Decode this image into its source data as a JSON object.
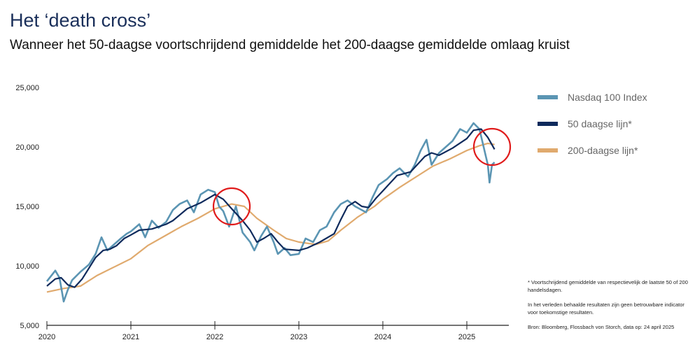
{
  "header": {
    "title": "Het ‘death cross’",
    "subtitle": "Wanneer het 50-daagse voortschrijdend gemiddelde het 200-daagse gemiddelde omlaag kruist"
  },
  "notes": [
    "* Voortschrijdend gemiddelde van respectievelijk de laatste 50 of 200 handelsdagen.",
    "In het verleden behaalde resultaten zijn geen betrouwbare indicator voor toekomstige resultaten.",
    "Bron: Bloomberg, Flossbach von Storch, data op: 24 april 2025"
  ],
  "chart_data": {
    "type": "line",
    "title": "",
    "xlabel": "",
    "ylabel": "",
    "ylim": [
      5000,
      25000
    ],
    "xlim": [
      2020,
      2025.5
    ],
    "yticks": [
      "5,000",
      "10,000",
      "15,000",
      "20,000",
      "25,000"
    ],
    "xticks": [
      "2020",
      "2021",
      "2022",
      "2023",
      "2024",
      "2025"
    ],
    "grid": false,
    "legend": "right",
    "annotations": [
      {
        "type": "circle",
        "x": 2022.2,
        "y": 15000,
        "color": "#e01b1b"
      },
      {
        "type": "circle",
        "x": 2025.3,
        "y": 20000,
        "color": "#e01b1b"
      }
    ],
    "series": [
      {
        "name": "Nasdaq 100 Index",
        "color": "#5b95b3",
        "points": [
          [
            2020.0,
            8700
          ],
          [
            2020.1,
            9600
          ],
          [
            2020.15,
            9000
          ],
          [
            2020.2,
            7000
          ],
          [
            2020.25,
            8000
          ],
          [
            2020.3,
            8800
          ],
          [
            2020.4,
            9500
          ],
          [
            2020.5,
            10100
          ],
          [
            2020.58,
            11000
          ],
          [
            2020.65,
            12400
          ],
          [
            2020.72,
            11300
          ],
          [
            2020.8,
            11800
          ],
          [
            2020.88,
            12300
          ],
          [
            2020.95,
            12700
          ],
          [
            2021.0,
            12900
          ],
          [
            2021.1,
            13500
          ],
          [
            2021.17,
            12400
          ],
          [
            2021.25,
            13800
          ],
          [
            2021.33,
            13200
          ],
          [
            2021.42,
            13700
          ],
          [
            2021.5,
            14700
          ],
          [
            2021.58,
            15200
          ],
          [
            2021.67,
            15500
          ],
          [
            2021.75,
            14500
          ],
          [
            2021.83,
            16000
          ],
          [
            2021.92,
            16400
          ],
          [
            2022.0,
            16200
          ],
          [
            2022.05,
            15000
          ],
          [
            2022.1,
            14600
          ],
          [
            2022.17,
            13300
          ],
          [
            2022.25,
            15000
          ],
          [
            2022.33,
            12800
          ],
          [
            2022.42,
            12000
          ],
          [
            2022.47,
            11300
          ],
          [
            2022.55,
            12500
          ],
          [
            2022.62,
            13300
          ],
          [
            2022.7,
            12000
          ],
          [
            2022.75,
            11000
          ],
          [
            2022.83,
            11500
          ],
          [
            2022.9,
            10900
          ],
          [
            2023.0,
            11000
          ],
          [
            2023.08,
            12300
          ],
          [
            2023.17,
            12000
          ],
          [
            2023.25,
            13000
          ],
          [
            2023.33,
            13300
          ],
          [
            2023.42,
            14500
          ],
          [
            2023.5,
            15200
          ],
          [
            2023.58,
            15500
          ],
          [
            2023.67,
            15000
          ],
          [
            2023.8,
            14500
          ],
          [
            2023.88,
            15800
          ],
          [
            2023.95,
            16800
          ],
          [
            2024.05,
            17300
          ],
          [
            2024.12,
            17800
          ],
          [
            2024.2,
            18200
          ],
          [
            2024.3,
            17500
          ],
          [
            2024.38,
            18500
          ],
          [
            2024.45,
            19700
          ],
          [
            2024.52,
            20600
          ],
          [
            2024.58,
            18500
          ],
          [
            2024.67,
            19500
          ],
          [
            2024.75,
            20000
          ],
          [
            2024.83,
            20500
          ],
          [
            2024.92,
            21500
          ],
          [
            2025.0,
            21200
          ],
          [
            2025.08,
            22000
          ],
          [
            2025.15,
            21500
          ],
          [
            2025.2,
            20000
          ],
          [
            2025.25,
            18500
          ],
          [
            2025.27,
            17000
          ],
          [
            2025.3,
            18500
          ],
          [
            2025.33,
            18700
          ]
        ]
      },
      {
        "name": "50 daagse lijn*",
        "color": "#0e2a5c",
        "points": [
          [
            2020.0,
            8300
          ],
          [
            2020.1,
            8900
          ],
          [
            2020.17,
            9000
          ],
          [
            2020.25,
            8400
          ],
          [
            2020.33,
            8200
          ],
          [
            2020.42,
            8900
          ],
          [
            2020.5,
            9800
          ],
          [
            2020.58,
            10700
          ],
          [
            2020.67,
            11300
          ],
          [
            2020.75,
            11400
          ],
          [
            2020.83,
            11700
          ],
          [
            2020.92,
            12300
          ],
          [
            2021.0,
            12600
          ],
          [
            2021.1,
            13000
          ],
          [
            2021.25,
            13100
          ],
          [
            2021.42,
            13500
          ],
          [
            2021.5,
            13800
          ],
          [
            2021.67,
            14800
          ],
          [
            2021.83,
            15300
          ],
          [
            2022.0,
            16000
          ],
          [
            2022.1,
            15600
          ],
          [
            2022.2,
            14800
          ],
          [
            2022.33,
            13800
          ],
          [
            2022.42,
            13000
          ],
          [
            2022.5,
            12000
          ],
          [
            2022.58,
            12300
          ],
          [
            2022.67,
            12700
          ],
          [
            2022.75,
            12000
          ],
          [
            2022.83,
            11400
          ],
          [
            2023.0,
            11300
          ],
          [
            2023.1,
            11500
          ],
          [
            2023.25,
            12000
          ],
          [
            2023.42,
            12700
          ],
          [
            2023.5,
            13900
          ],
          [
            2023.58,
            15000
          ],
          [
            2023.67,
            15400
          ],
          [
            2023.75,
            15000
          ],
          [
            2023.83,
            14900
          ],
          [
            2023.92,
            15700
          ],
          [
            2024.0,
            16300
          ],
          [
            2024.17,
            17600
          ],
          [
            2024.33,
            17900
          ],
          [
            2024.5,
            19200
          ],
          [
            2024.58,
            19500
          ],
          [
            2024.67,
            19300
          ],
          [
            2024.83,
            19900
          ],
          [
            2025.0,
            20700
          ],
          [
            2025.08,
            21400
          ],
          [
            2025.17,
            21500
          ],
          [
            2025.25,
            20800
          ],
          [
            2025.33,
            19800
          ]
        ]
      },
      {
        "name": "200-daagse lijn*",
        "color": "#e0aa6e",
        "points": [
          [
            2020.0,
            7800
          ],
          [
            2020.2,
            8100
          ],
          [
            2020.4,
            8300
          ],
          [
            2020.6,
            9200
          ],
          [
            2020.8,
            9900
          ],
          [
            2021.0,
            10600
          ],
          [
            2021.2,
            11700
          ],
          [
            2021.4,
            12500
          ],
          [
            2021.6,
            13300
          ],
          [
            2021.8,
            14000
          ],
          [
            2022.0,
            14800
          ],
          [
            2022.2,
            15200
          ],
          [
            2022.35,
            15000
          ],
          [
            2022.5,
            14000
          ],
          [
            2022.7,
            13000
          ],
          [
            2022.85,
            12300
          ],
          [
            2023.0,
            12000
          ],
          [
            2023.2,
            11800
          ],
          [
            2023.35,
            12100
          ],
          [
            2023.5,
            13000
          ],
          [
            2023.7,
            14100
          ],
          [
            2023.9,
            15000
          ],
          [
            2024.0,
            15600
          ],
          [
            2024.2,
            16600
          ],
          [
            2024.4,
            17500
          ],
          [
            2024.6,
            18400
          ],
          [
            2024.8,
            19000
          ],
          [
            2025.0,
            19700
          ],
          [
            2025.15,
            20100
          ],
          [
            2025.25,
            20300
          ],
          [
            2025.33,
            20200
          ]
        ]
      }
    ]
  }
}
